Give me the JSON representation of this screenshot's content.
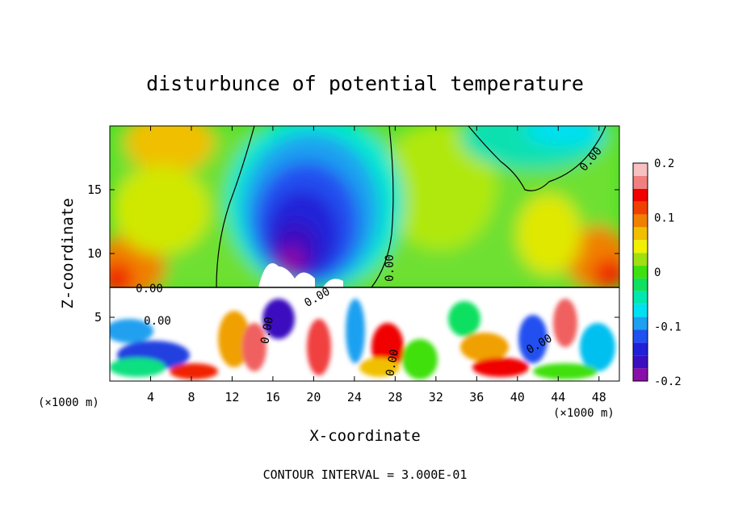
{
  "chart_data": {
    "type": "heatmap",
    "title": "disturbunce of potential temperature",
    "xlabel": "X-coordinate",
    "ylabel": "Z-coordinate",
    "x_unit_left": "(×1000 m)",
    "x_unit_right": "(×1000 m)",
    "x_ticks": [
      4,
      8,
      12,
      16,
      20,
      24,
      28,
      32,
      36,
      40,
      44,
      48
    ],
    "y_ticks": [
      5,
      10,
      15
    ],
    "xlim": [
      0,
      50
    ],
    "ylim": [
      0,
      20
    ],
    "colorbar": {
      "ticks": [
        "0.2",
        "0.1",
        "0",
        "-0.1",
        "-0.2"
      ],
      "range": [
        -0.2,
        0.2
      ],
      "colors": [
        "#8a0fa8",
        "#3b0fbf",
        "#2020d8",
        "#2050f0",
        "#1ea0f0",
        "#00e0f0",
        "#00e8b0",
        "#10e060",
        "#40e010",
        "#a0e010",
        "#f0f000",
        "#f0c000",
        "#f08000",
        "#f04000",
        "#f00000",
        "#f08080",
        "#f8c0c0"
      ]
    },
    "contour_labels": [
      "0.00",
      "0.00",
      "0.00",
      "0.00",
      "0.00",
      "0.00",
      "0.00",
      "0.00"
    ],
    "footer": "CONTOUR INTERVAL = 3.000E-01"
  }
}
